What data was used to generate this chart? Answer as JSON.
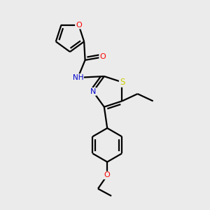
{
  "background_color": "#ebebeb",
  "atom_colors": {
    "C": "#000000",
    "N": "#0000cc",
    "O": "#ff0000",
    "S": "#cccc00",
    "H": "#5599aa"
  },
  "bond_color": "#000000",
  "bond_width": 1.6,
  "figsize": [
    3.0,
    3.0
  ],
  "dpi": 100,
  "xlim": [
    0,
    10
  ],
  "ylim": [
    0,
    10
  ]
}
